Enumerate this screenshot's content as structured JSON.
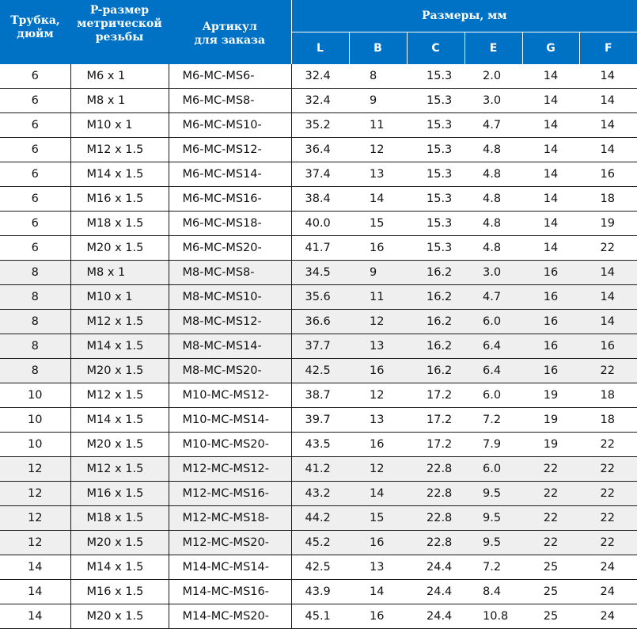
{
  "header": {
    "tube": "Трубка,\nдюйм",
    "thread": "P-размер\nметрической\nрезьбы",
    "article": "Артикул\nдля заказа",
    "sizes": "Размеры, мм",
    "sub": [
      "L",
      "B",
      "C",
      "E",
      "G",
      "F"
    ]
  },
  "rows": [
    [
      "6",
      "M6 x 1",
      "M6-MC-MS6-",
      "32.4",
      "8",
      "15.3",
      "2.0",
      "14",
      "14"
    ],
    [
      "6",
      "M8 x 1",
      "M6-MC-MS8-",
      "32.4",
      "9",
      "15.3",
      "3.0",
      "14",
      "14"
    ],
    [
      "6",
      "M10 x 1",
      "M6-MC-MS10-",
      "35.2",
      "11",
      "15.3",
      "4.7",
      "14",
      "14"
    ],
    [
      "6",
      "M12 x 1.5",
      "M6-MC-MS12-",
      "36.4",
      "12",
      "15.3",
      "4.8",
      "14",
      "14"
    ],
    [
      "6",
      "M14 x 1.5",
      "M6-MC-MS14-",
      "37.4",
      "13",
      "15.3",
      "4.8",
      "14",
      "16"
    ],
    [
      "6",
      "M16 x 1.5",
      "M6-MC-MS16-",
      "38.4",
      "14",
      "15.3",
      "4.8",
      "14",
      "18"
    ],
    [
      "6",
      "M18 x 1.5",
      "M6-MC-MS18-",
      "40.0",
      "15",
      "15.3",
      "4.8",
      "14",
      "19"
    ],
    [
      "6",
      "M20 x 1.5",
      "M6-MC-MS20-",
      "41.7",
      "16",
      "15.3",
      "4.8",
      "14",
      "22"
    ],
    [
      "8",
      "M8 x 1",
      "M8-MC-MS8-",
      "34.5",
      "9",
      "16.2",
      "3.0",
      "16",
      "14"
    ],
    [
      "8",
      "M10 x 1",
      "M8-MC-MS10-",
      "35.6",
      "11",
      "16.2",
      "4.7",
      "16",
      "14"
    ],
    [
      "8",
      "M12 x 1.5",
      "M8-MC-MS12-",
      "36.6",
      "12",
      "16.2",
      "6.0",
      "16",
      "14"
    ],
    [
      "8",
      "M14 x 1.5",
      "M8-MC-MS14-",
      "37.7",
      "13",
      "16.2",
      "6.4",
      "16",
      "16"
    ],
    [
      "8",
      "M20 x 1.5",
      "M8-MC-MS20-",
      "42.5",
      "16",
      "16.2",
      "6.4",
      "16",
      "22"
    ],
    [
      "10",
      "M12 x 1.5",
      "M10-MC-MS12-",
      "38.7",
      "12",
      "17.2",
      "6.0",
      "19",
      "18"
    ],
    [
      "10",
      "M14 x 1.5",
      "M10-MC-MS14-",
      "39.7",
      "13",
      "17.2",
      "7.2",
      "19",
      "18"
    ],
    [
      "10",
      "M20 x 1.5",
      "M10-MC-MS20-",
      "43.5",
      "16",
      "17.2",
      "7.9",
      "19",
      "22"
    ],
    [
      "12",
      "M12 x 1.5",
      "M12-MC-MS12-",
      "41.2",
      "12",
      "22.8",
      "6.0",
      "22",
      "22"
    ],
    [
      "12",
      "M16 x 1.5",
      "M12-MC-MS16-",
      "43.2",
      "14",
      "22.8",
      "9.5",
      "22",
      "22"
    ],
    [
      "12",
      "M18 x 1.5",
      "M12-MC-MS18-",
      "44.2",
      "15",
      "22.8",
      "9.5",
      "22",
      "22"
    ],
    [
      "12",
      "M20 x 1.5",
      "M12-MC-MS20-",
      "45.2",
      "16",
      "22.8",
      "9.5",
      "22",
      "22"
    ],
    [
      "14",
      "M14 x 1.5",
      "M14-MC-MS14-",
      "42.5",
      "13",
      "24.4",
      "7.2",
      "25",
      "24"
    ],
    [
      "14",
      "M16 x 1.5",
      "M14-MC-MS16-",
      "43.9",
      "14",
      "24.4",
      "8.4",
      "25",
      "24"
    ],
    [
      "14",
      "M20 x 1.5",
      "M14-MC-MS20-",
      "45.1",
      "16",
      "24.4",
      "10.8",
      "25",
      "24"
    ]
  ],
  "shaded_groups": [
    "8",
    "12"
  ],
  "colors": {
    "header_bg": "#0072c6",
    "header_text": "#ffffff",
    "shade_bg": "#efefef",
    "rule": "#1a1a1a"
  }
}
